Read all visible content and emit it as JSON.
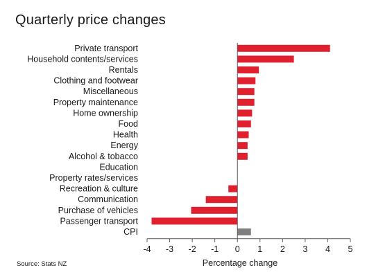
{
  "chart_data": {
    "type": "bar",
    "orientation": "horizontal",
    "title": "Quarterly price changes",
    "xlabel": "Percentage change",
    "source": "Source: Stats NZ",
    "xlim": [
      -4,
      5
    ],
    "xticks": [
      "-4",
      "-3",
      "-2",
      "-1",
      "0",
      "1",
      "2",
      "3",
      "4",
      "5"
    ],
    "grid": false,
    "colors": {
      "default": "#e0202e",
      "highlight": "#7f7f7f"
    },
    "categories": [
      "Private transport",
      "Household contents/services",
      "Rentals",
      "Clothing and footwear",
      "Miscellaneous",
      "Property maintenance",
      "Home ownership",
      "Food",
      "Health",
      "Energy",
      "Alcohol & tobacco",
      "Education",
      "Property rates/services",
      "Recreation & culture",
      "Communication",
      "Purchase of vehicles",
      "Passenger transport",
      "CPI"
    ],
    "values": [
      4.1,
      2.5,
      0.95,
      0.8,
      0.75,
      0.75,
      0.65,
      0.6,
      0.5,
      0.45,
      0.45,
      0.0,
      0.0,
      -0.4,
      -1.4,
      -2.05,
      -3.8,
      0.6
    ],
    "highlight": [
      "CPI"
    ]
  }
}
